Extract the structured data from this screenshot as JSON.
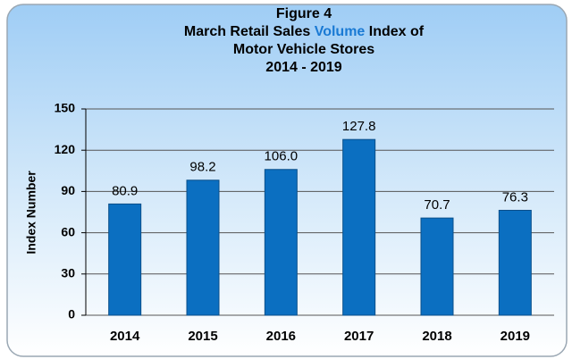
{
  "chart_data": {
    "type": "bar",
    "title": {
      "line1": "Figure 4",
      "line2": [
        "March Retail Sales",
        "Volume",
        "Index of"
      ],
      "line3": "Motor Vehicle Stores",
      "line4": "2014 - 2019"
    },
    "y_label": "Index Number",
    "categories": [
      "2014",
      "2015",
      "2016",
      "2017",
      "2018",
      "2019"
    ],
    "values": [
      80.9,
      98.2,
      106.0,
      127.8,
      70.7,
      76.3
    ],
    "value_labels": [
      "80.9",
      "98.2",
      "106.0",
      "127.8",
      "70.7",
      "76.3"
    ],
    "color": "#0b6fc1",
    "highlight_color": "#1a7ad4",
    "ylim": [
      0,
      150
    ],
    "yticks": [
      0,
      30,
      60,
      90,
      120,
      150
    ],
    "grid": true
  }
}
